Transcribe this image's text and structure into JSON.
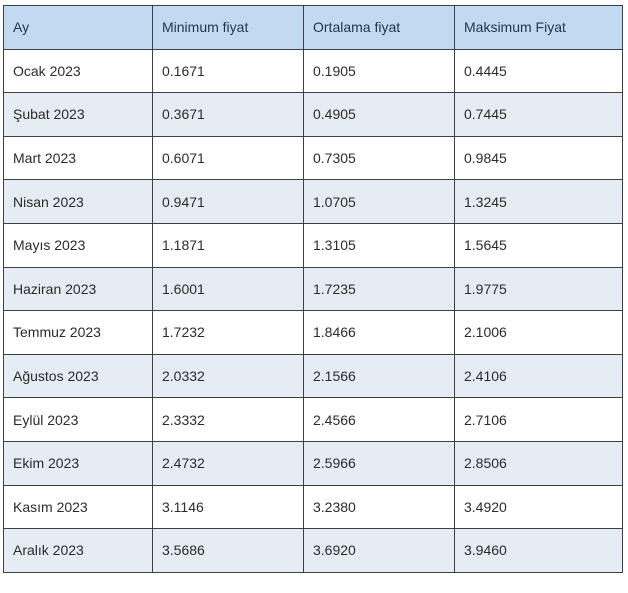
{
  "table": {
    "headers": [
      "Ay",
      "Minimum fiyat",
      "Ortalama fiyat",
      "Maksimum Fiyat"
    ],
    "rows": [
      [
        "Ocak 2023",
        "0.1671",
        "0.1905",
        "0.4445"
      ],
      [
        "Şubat 2023",
        "0.3671",
        "0.4905",
        "0.7445"
      ],
      [
        "Mart 2023",
        "0.6071",
        "0.7305",
        "0.9845"
      ],
      [
        "Nisan 2023",
        "0.9471",
        "1.0705",
        "1.3245"
      ],
      [
        "Mayıs 2023",
        "1.1871",
        "1.3105",
        "1.5645"
      ],
      [
        "Haziran 2023",
        "1.6001",
        "1.7235",
        "1.9775"
      ],
      [
        "Temmuz 2023",
        "1.7232",
        "1.8466",
        "2.1006"
      ],
      [
        "Ağustos 2023",
        "2.0332",
        "2.1566",
        "2.4106"
      ],
      [
        "Eylül 2023",
        "2.3332",
        "2.4566",
        "2.7106"
      ],
      [
        "Ekim 2023",
        "2.4732",
        "2.5966",
        "2.8506"
      ],
      [
        "Kasım 2023",
        "3.1146",
        "3.2380",
        "3.4920"
      ],
      [
        "Aralık 2023",
        "3.5686",
        "3.6920",
        "3.9460"
      ]
    ]
  },
  "colors": {
    "header_bg": "#c2daf1",
    "row_alt_bg": "#e5ecf4",
    "row_bg": "#ffffff",
    "border": "#3f3f3f"
  }
}
